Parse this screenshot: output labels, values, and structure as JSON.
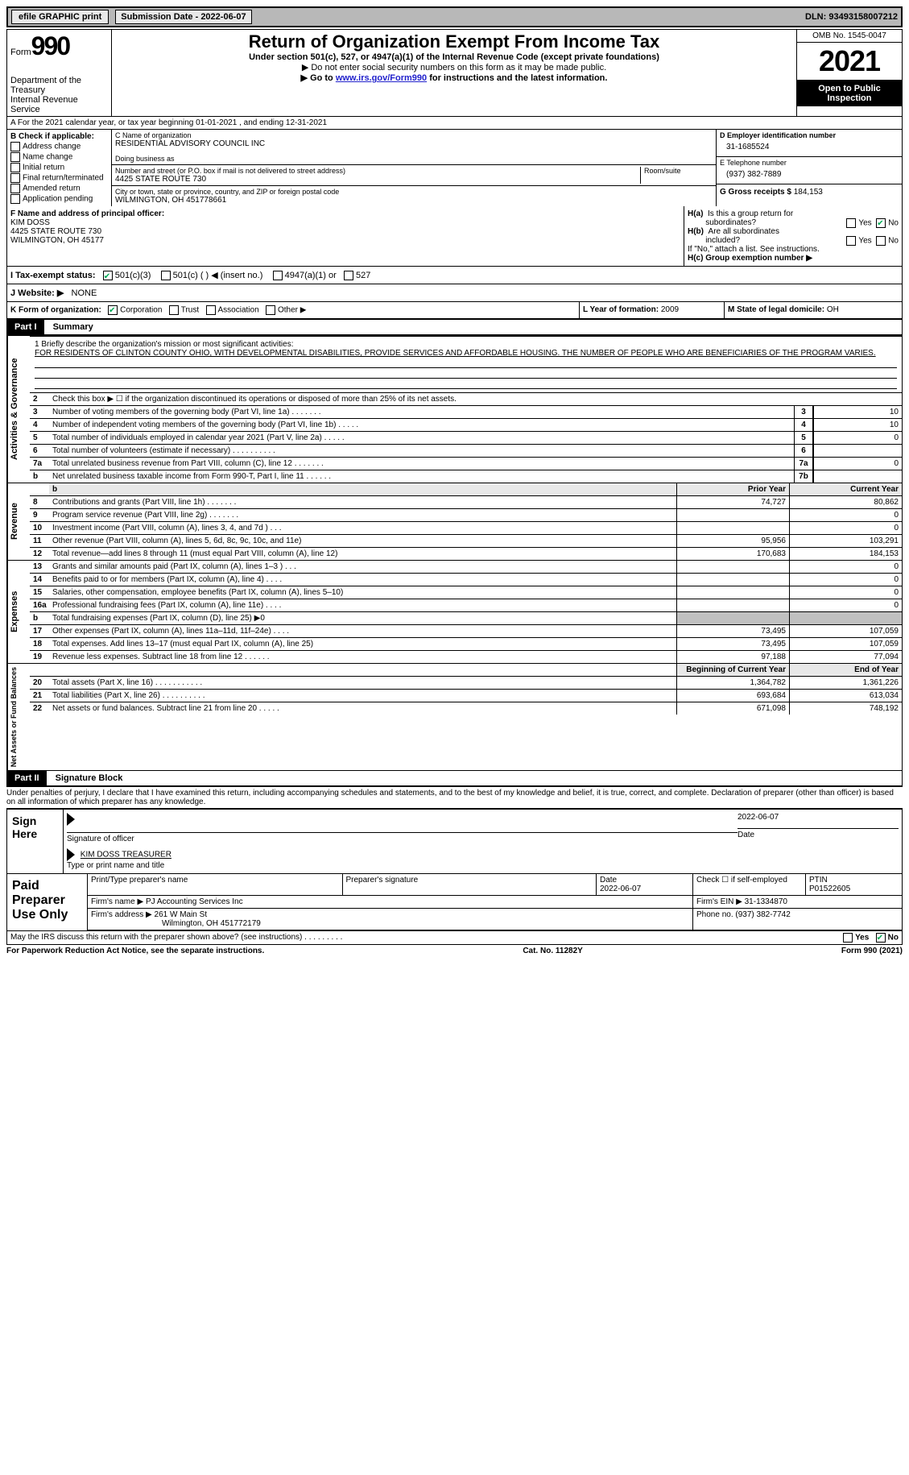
{
  "topbar": {
    "efile_label": "efile GRAPHIC print",
    "sub_label": "Submission Date - 2022-06-07",
    "dln_label": "DLN: 93493158007212"
  },
  "header": {
    "form_label": "Form",
    "form_num": "990",
    "dept": "Department of the Treasury",
    "irs": "Internal Revenue Service",
    "title": "Return of Organization Exempt From Income Tax",
    "sub1": "Under section 501(c), 527, or 4947(a)(1) of the Internal Revenue Code (except private foundations)",
    "sub2": "▶ Do not enter social security numbers on this form as it may be made public.",
    "sub3_pre": "▶ Go to ",
    "sub3_link": "www.irs.gov/Form990",
    "sub3_post": " for instructions and the latest information.",
    "omb": "OMB No. 1545-0047",
    "year": "2021",
    "open_pub": "Open to Public Inspection"
  },
  "period": {
    "line": "A For the 2021 calendar year, or tax year beginning 01-01-2021    , and ending 12-31-2021"
  },
  "boxB": {
    "label": "B Check if applicable:",
    "addr": "Address change",
    "name": "Name change",
    "init": "Initial return",
    "final": "Final return/terminated",
    "amend": "Amended return",
    "app": "Application pending"
  },
  "boxC": {
    "c_label": "C Name of organization",
    "org_name": "RESIDENTIAL ADVISORY COUNCIL INC",
    "dba_label": "Doing business as",
    "addr_label": "Number and street (or P.O. box if mail is not delivered to street address)",
    "room_label": "Room/suite",
    "addr": "4425 STATE ROUTE 730",
    "city_label": "City or town, state or province, country, and ZIP or foreign postal code",
    "city": "WILMINGTON, OH  451778661"
  },
  "boxD": {
    "d_label": "D Employer identification number",
    "ein": "31-1685524",
    "e_label": "E Telephone number",
    "phone": "(937) 382-7889",
    "g_label": "G Gross receipts $",
    "gross": "184,153"
  },
  "boxF": {
    "label": "F Name and address of principal officer:",
    "name": "KIM DOSS",
    "addr": "4425 STATE ROUTE 730",
    "city": "WILMINGTON, OH  45177"
  },
  "boxH": {
    "ha": "H(a)  Is this a group return for subordinates?",
    "hb": "H(b)  Are all subordinates included?",
    "hb_note": "If \"No,\" attach a list. See instructions.",
    "hc": "H(c)  Group exemption number ▶",
    "yes": "Yes",
    "no": "No"
  },
  "boxI": {
    "label": "I   Tax-exempt status:",
    "s1": "501(c)(3)",
    "s2": "501(c) (  ) ◀ (insert no.)",
    "s3": "4947(a)(1) or",
    "s4": "527"
  },
  "boxJ": {
    "label": "J   Website: ▶",
    "val": "NONE"
  },
  "boxK": {
    "label": "K Form of organization:",
    "corp": "Corporation",
    "trust": "Trust",
    "assoc": "Association",
    "other": "Other ▶"
  },
  "boxL": {
    "label": "L Year of formation:",
    "val": "2009"
  },
  "boxM": {
    "label": "M State of legal domicile:",
    "val": "OH"
  },
  "part1": {
    "hdr": "Part I",
    "title": "Summary"
  },
  "mission": {
    "q": "1  Briefly describe the organization's mission or most significant activities:",
    "text": "FOR RESIDENTS OF CLINTON COUNTY OHIO, WITH DEVELOPMENTAL DISABILITIES, PROVIDE SERVICES AND AFFORDABLE HOUSING. THE NUMBER OF PEOPLE WHO ARE BENEFICIARIES OF THE PROGRAM VARIES."
  },
  "gov_lines": [
    {
      "n": "2",
      "t": "Check this box ▶ ☐ if the organization discontinued its operations or disposed of more than 25% of its net assets.",
      "b": "",
      "v": ""
    },
    {
      "n": "3",
      "t": "Number of voting members of the governing body (Part VI, line 1a)  .    .    .    .    .    .    .",
      "b": "3",
      "v": "10"
    },
    {
      "n": "4",
      "t": "Number of independent voting members of the governing body (Part VI, line 1b)  .    .    .    .    .",
      "b": "4",
      "v": "10"
    },
    {
      "n": "5",
      "t": "Total number of individuals employed in calendar year 2021 (Part V, line 2a)  .    .    .    .    .",
      "b": "5",
      "v": "0"
    },
    {
      "n": "6",
      "t": "Total number of volunteers (estimate if necessary)    .    .    .    .    .    .    .    .    .    .",
      "b": "6",
      "v": ""
    },
    {
      "n": "7a",
      "t": "Total unrelated business revenue from Part VIII, column (C), line 12  .    .    .    .    .    .    .",
      "b": "7a",
      "v": "0"
    },
    {
      "n": "b",
      "t": "Net unrelated business taxable income from Form 990-T, Part I, line 11  .    .    .    .    .    .",
      "b": "7b",
      "v": ""
    }
  ],
  "rev_hdr": {
    "prior": "Prior Year",
    "current": "Current Year"
  },
  "rev_lines": [
    {
      "n": "8",
      "t": "Contributions and grants (Part VIII, line 1h)   .    .    .    .    .    .    .",
      "p": "74,727",
      "c": "80,862"
    },
    {
      "n": "9",
      "t": "Program service revenue (Part VIII, line 2g)   .    .    .    .    .    .    .",
      "p": "",
      "c": "0"
    },
    {
      "n": "10",
      "t": "Investment income (Part VIII, column (A), lines 3, 4, and 7d )   .    .    .",
      "p": "",
      "c": "0"
    },
    {
      "n": "11",
      "t": "Other revenue (Part VIII, column (A), lines 5, 6d, 8c, 9c, 10c, and 11e)",
      "p": "95,956",
      "c": "103,291"
    },
    {
      "n": "12",
      "t": "Total revenue—add lines 8 through 11 (must equal Part VIII, column (A), line 12)",
      "p": "170,683",
      "c": "184,153"
    }
  ],
  "exp_lines": [
    {
      "n": "13",
      "t": "Grants and similar amounts paid (Part IX, column (A), lines 1–3 )   .    .    .",
      "p": "",
      "c": "0"
    },
    {
      "n": "14",
      "t": "Benefits paid to or for members (Part IX, column (A), line 4)   .    .    .    .",
      "p": "",
      "c": "0"
    },
    {
      "n": "15",
      "t": "Salaries, other compensation, employee benefits (Part IX, column (A), lines 5–10)",
      "p": "",
      "c": "0"
    },
    {
      "n": "16a",
      "t": "Professional fundraising fees (Part IX, column (A), line 11e)   .    .    .    .",
      "p": "",
      "c": "0"
    },
    {
      "n": "b",
      "t": "Total fundraising expenses (Part IX, column (D), line 25) ▶0",
      "p": "GREY",
      "c": "GREY"
    },
    {
      "n": "17",
      "t": "Other expenses (Part IX, column (A), lines 11a–11d, 11f–24e)   .    .    .    .",
      "p": "73,495",
      "c": "107,059"
    },
    {
      "n": "18",
      "t": "Total expenses. Add lines 13–17 (must equal Part IX, column (A), line 25)",
      "p": "73,495",
      "c": "107,059"
    },
    {
      "n": "19",
      "t": "Revenue less expenses. Subtract line 18 from line 12  .    .    .    .    .    .",
      "p": "97,188",
      "c": "77,094"
    }
  ],
  "net_hdr": {
    "begin": "Beginning of Current Year",
    "end": "End of Year"
  },
  "net_lines": [
    {
      "n": "20",
      "t": "Total assets (Part X, line 16)  .    .    .    .    .    .    .    .    .    .    .",
      "p": "1,364,782",
      "c": "1,361,226"
    },
    {
      "n": "21",
      "t": "Total liabilities (Part X, line 26)  .    .    .    .    .    .    .    .    .    .",
      "p": "693,684",
      "c": "613,034"
    },
    {
      "n": "22",
      "t": "Net assets or fund balances. Subtract line 21 from line 20  .    .    .    .    .",
      "p": "671,098",
      "c": "748,192"
    }
  ],
  "vlabels": {
    "gov": "Activities & Governance",
    "rev": "Revenue",
    "exp": "Expenses",
    "net": "Net Assets or Fund Balances"
  },
  "part2": {
    "hdr": "Part II",
    "title": "Signature Block"
  },
  "decl": "Under penalties of perjury, I declare that I have examined this return, including accompanying schedules and statements, and to the best of my knowledge and belief, it is true, correct, and complete. Declaration of preparer (other than officer) is based on all information of which preparer has any knowledge.",
  "sign": {
    "side": "Sign Here",
    "sig_label": "Signature of officer",
    "sig_date": "2022-06-07",
    "date_label": "Date",
    "name": "KIM DOSS TREASURER",
    "name_label": "Type or print name and title"
  },
  "prep": {
    "side": "Paid Preparer Use Only",
    "h1": "Print/Type preparer's name",
    "h2": "Preparer's signature",
    "h3_label": "Date",
    "h3": "2022-06-07",
    "h4": "Check ☐ if self-employed",
    "h5_label": "PTIN",
    "h5": "P01522605",
    "firm_label": "Firm's name    ▶",
    "firm": "PJ Accounting Services Inc",
    "ein_label": "Firm's EIN ▶",
    "ein": "31-1334870",
    "addr_label": "Firm's address ▶",
    "addr": "261 W Main St",
    "addr2": "Wilmington, OH  451772179",
    "phone_label": "Phone no.",
    "phone": "(937) 382-7742"
  },
  "discuss": {
    "q": "May the IRS discuss this return with the preparer shown above? (see instructions)   .    .    .    .    .    .    .    .    .",
    "yes": "Yes",
    "no": "No"
  },
  "footer": {
    "left": "For Paperwork Reduction Act Notice, see the separate instructions.",
    "mid": "Cat. No. 11282Y",
    "right": "Form 990 (2021)"
  }
}
